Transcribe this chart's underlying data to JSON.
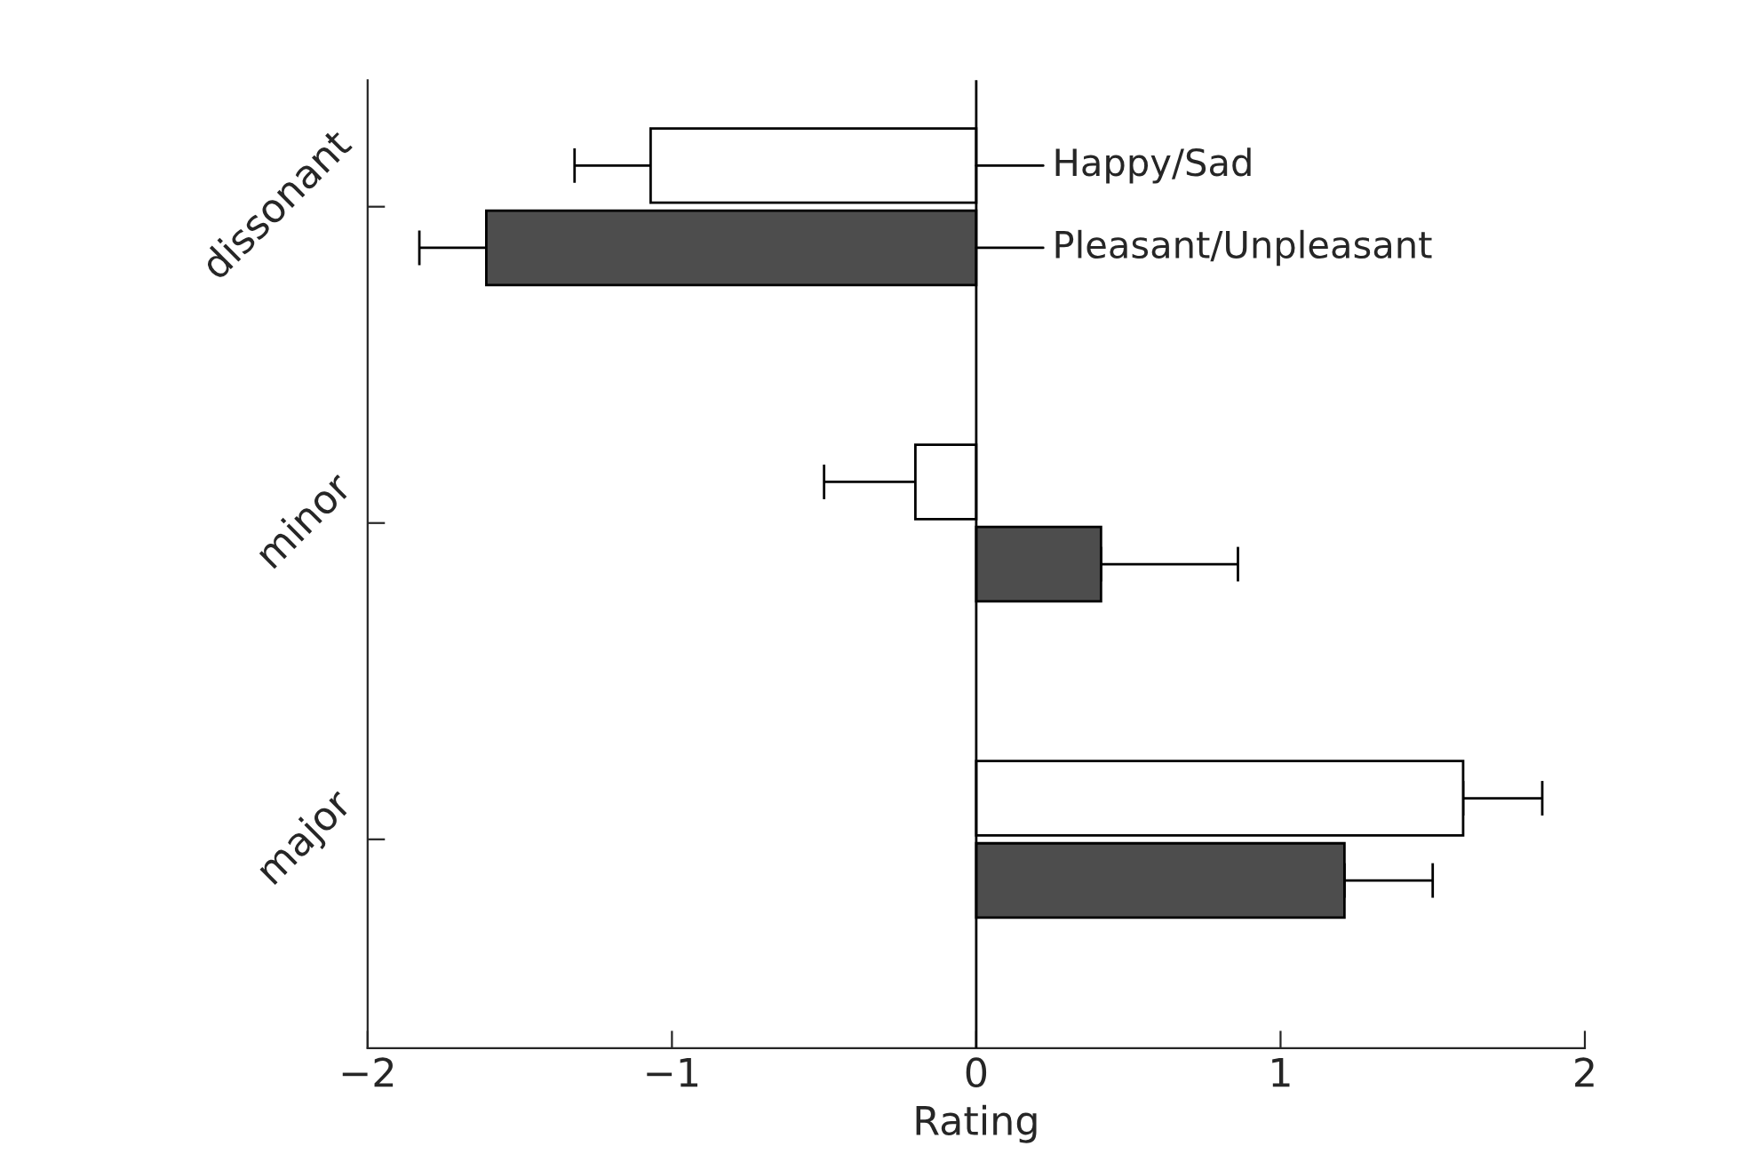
{
  "chart_data": {
    "type": "bar",
    "orientation": "horizontal",
    "categories": [
      "dissonant",
      "minor",
      "major"
    ],
    "series": [
      {
        "name": "Happy/Sad",
        "color": "#ffffff",
        "values": [
          -1.07,
          -0.2,
          1.6
        ],
        "errors": [
          0.25,
          0.3,
          0.26
        ]
      },
      {
        "name": "Pleasant/Unpleasant",
        "color": "#4d4d4d",
        "values": [
          -1.61,
          0.41,
          1.21
        ],
        "errors": [
          0.22,
          0.45,
          0.29
        ]
      }
    ],
    "xlabel": "Rating",
    "xlim": [
      -2,
      2
    ],
    "xticks": [
      {
        "value": -2,
        "label": "−2"
      },
      {
        "value": -1,
        "label": "−1"
      },
      0,
      1,
      2
    ],
    "ref_lines": [
      {
        "axis": "x",
        "value": 0,
        "color": "#000000"
      }
    ],
    "grid": false,
    "legend": "top right"
  }
}
